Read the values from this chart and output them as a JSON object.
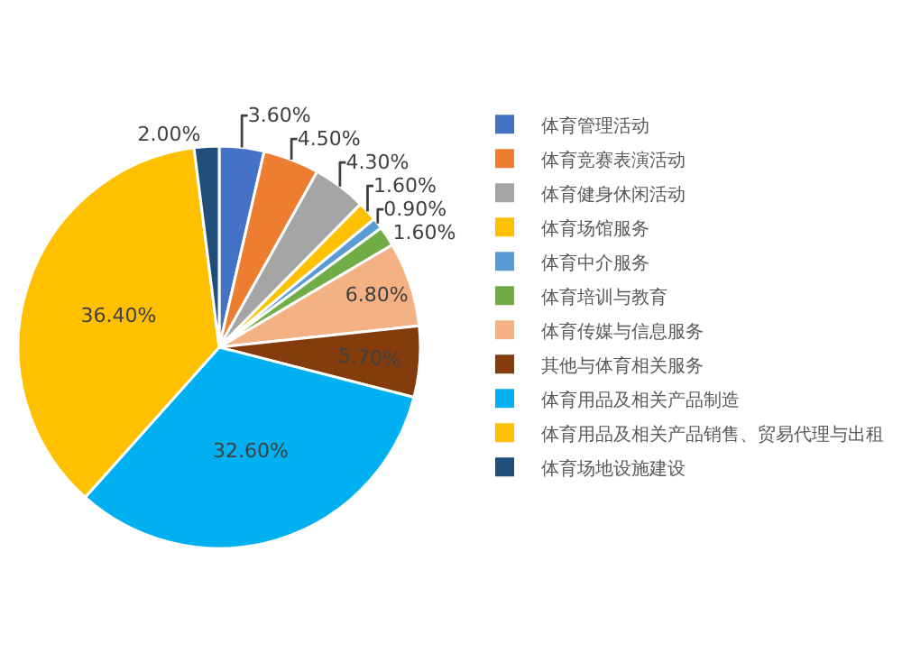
{
  "chart_data": {
    "type": "pie",
    "categories": [
      "体育管理活动",
      "体育竞赛表演活动",
      "体育健身休闲活动",
      "体育场馆服务",
      "体育中介服务",
      "体育培训与教育",
      "体育传媒与信息服务",
      "其他与体育相关服务",
      "体育用品及相关产品制造",
      "体育用品及相关产品销售、贸易代理与出租",
      "体育场地设施建设"
    ],
    "values": [
      3.6,
      4.5,
      4.3,
      1.6,
      0.9,
      1.6,
      6.8,
      5.7,
      32.6,
      36.4,
      2.0
    ],
    "value_labels": [
      "3.60%",
      "4.50%",
      "4.30%",
      "1.60%",
      "0.90%",
      "1.60%",
      "6.80%",
      "5.70%",
      "32.60%",
      "36.40%",
      "2.00%"
    ],
    "colors": [
      "#4472c4",
      "#ed7d31",
      "#a5a5a5",
      "#ffc000",
      "#5b9bd5",
      "#70ad47",
      "#f4b183",
      "#843c0c",
      "#00b0f0",
      "#ffc000",
      "#1f4e79"
    ],
    "legend": "right"
  }
}
